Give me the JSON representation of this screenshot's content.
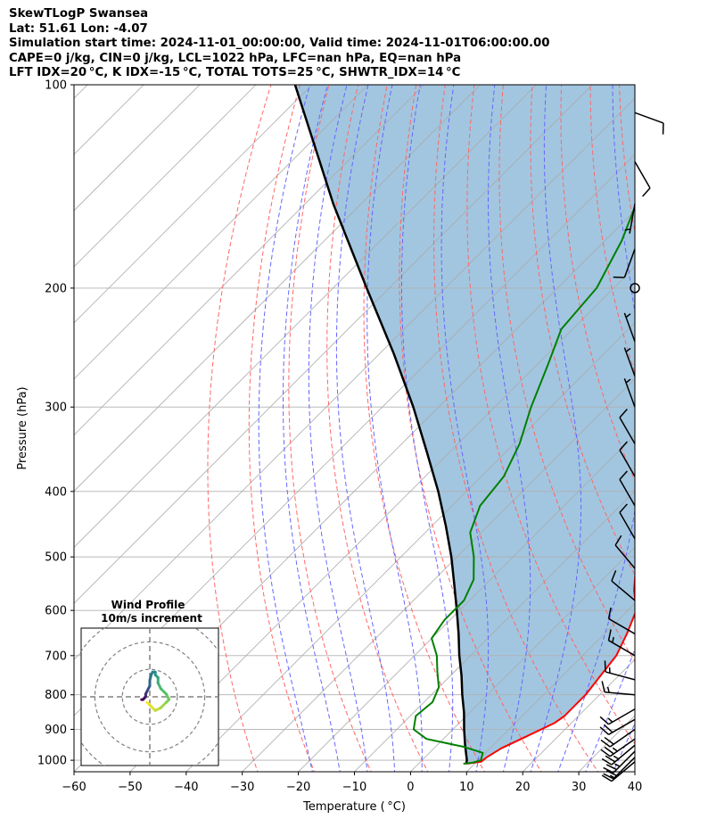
{
  "header": {
    "line1": "SkewTLogP Swansea",
    "line2": "Lat: 51.61   Lon: -4.07",
    "line3": "Simulation start time: 2024-11-01_00:00:00, Valid time: 2024-11-01T06:00:00.00",
    "line4": "CAPE=0 j/kg, CIN=0 j/kg, LCL=1022 hPa, LFC=nan hPa, EQ=nan hPa",
    "line5": "LFT IDX=20 °C, K IDX=-15 °C, TOTAL TOTS=25 °C, SHWTR_IDX=14 °C"
  },
  "chart_data": {
    "type": "line",
    "title": "SkewTLogP Swansea",
    "xlabel": "Temperature ( °C)",
    "ylabel": "Pressure (hPa)",
    "xlim": [
      -60,
      40
    ],
    "ylim": [
      1040,
      100
    ],
    "y_scale": "log",
    "skew": "45 degree skewed isotherms",
    "grid": true,
    "x_ticks": [
      -60,
      -50,
      -40,
      -30,
      -20,
      -10,
      0,
      10,
      20,
      30,
      40
    ],
    "y_ticks": [
      100,
      200,
      300,
      400,
      500,
      600,
      700,
      800,
      900,
      1000
    ],
    "colors": {
      "temperature": "#ff0000",
      "dewpoint": "#008000",
      "parcel": "#000000",
      "shading": "#a2c6e0",
      "dry_adiabats": "#ff6666",
      "moist_adiabats": "#6666ff",
      "isotherms": "#aaaaaa",
      "grid": "#b0b0b0"
    },
    "series": [
      {
        "key": "temperature",
        "points": [
          [
            1012,
            8.5
          ],
          [
            1005,
            10.8
          ],
          [
            990,
            11
          ],
          [
            960,
            12
          ],
          [
            920,
            14.5
          ],
          [
            880,
            17
          ],
          [
            860,
            17.5
          ],
          [
            800,
            17.5
          ],
          [
            700,
            16
          ],
          [
            650,
            14
          ],
          [
            600,
            11.5
          ],
          [
            560,
            7.5
          ],
          [
            510,
            3
          ],
          [
            470,
            -0.5
          ],
          [
            440,
            -3.5
          ],
          [
            400,
            -8
          ],
          [
            350,
            -13.5
          ],
          [
            300,
            -19
          ],
          [
            250,
            -25.5
          ],
          [
            215,
            -31
          ],
          [
            195,
            -35
          ],
          [
            170,
            -38
          ],
          [
            150,
            -41
          ],
          [
            130,
            -46
          ],
          [
            115,
            -49
          ],
          [
            100,
            -54
          ]
        ]
      },
      {
        "key": "dewpoint",
        "points": [
          [
            1012,
            8
          ],
          [
            1008,
            9.5
          ],
          [
            1000,
            10.5
          ],
          [
            975,
            9.5
          ],
          [
            955,
            5
          ],
          [
            930,
            -3
          ],
          [
            900,
            -7
          ],
          [
            860,
            -9
          ],
          [
            820,
            -8.5
          ],
          [
            780,
            -10
          ],
          [
            740,
            -13
          ],
          [
            700,
            -16
          ],
          [
            660,
            -20
          ],
          [
            620,
            -21
          ],
          [
            580,
            -21
          ],
          [
            540,
            -23
          ],
          [
            500,
            -27
          ],
          [
            460,
            -32
          ],
          [
            420,
            -35
          ],
          [
            380,
            -36
          ],
          [
            340,
            -39
          ],
          [
            300,
            -43.5
          ],
          [
            260,
            -48
          ],
          [
            230,
            -52
          ],
          [
            200,
            -53
          ],
          [
            170,
            -57
          ],
          [
            150,
            -61
          ],
          [
            130,
            -63
          ],
          [
            115,
            -63
          ],
          [
            100,
            -65
          ]
        ]
      },
      {
        "key": "parcel",
        "points": [
          [
            1012,
            8.5
          ],
          [
            1000,
            8
          ],
          [
            950,
            5
          ],
          [
            900,
            2
          ],
          [
            850,
            -1
          ],
          [
            800,
            -4.5
          ],
          [
            750,
            -8
          ],
          [
            700,
            -12
          ],
          [
            650,
            -16
          ],
          [
            600,
            -20.5
          ],
          [
            550,
            -25.5
          ],
          [
            500,
            -31
          ],
          [
            450,
            -37.5
          ],
          [
            400,
            -45
          ],
          [
            350,
            -54
          ],
          [
            300,
            -64.5
          ],
          [
            250,
            -77.5
          ],
          [
            200,
            -94
          ],
          [
            150,
            -115
          ],
          [
            100,
            -143
          ]
        ]
      }
    ],
    "wind_barbs": [
      {
        "p": 1005,
        "speed_kt": 15,
        "dir_deg": 230
      },
      {
        "p": 990,
        "speed_kt": 20,
        "dir_deg": 225
      },
      {
        "p": 970,
        "speed_kt": 25,
        "dir_deg": 225
      },
      {
        "p": 950,
        "speed_kt": 25,
        "dir_deg": 230
      },
      {
        "p": 930,
        "speed_kt": 25,
        "dir_deg": 235
      },
      {
        "p": 900,
        "speed_kt": 20,
        "dir_deg": 235
      },
      {
        "p": 870,
        "speed_kt": 20,
        "dir_deg": 240
      },
      {
        "p": 840,
        "speed_kt": 15,
        "dir_deg": 240
      },
      {
        "p": 800,
        "speed_kt": 15,
        "dir_deg": 275
      },
      {
        "p": 760,
        "speed_kt": 15,
        "dir_deg": 285
      },
      {
        "p": 700,
        "speed_kt": 15,
        "dir_deg": 300
      },
      {
        "p": 650,
        "speed_kt": 10,
        "dir_deg": 300
      },
      {
        "p": 580,
        "speed_kt": 10,
        "dir_deg": 310
      },
      {
        "p": 520,
        "speed_kt": 10,
        "dir_deg": 320
      },
      {
        "p": 470,
        "speed_kt": 10,
        "dir_deg": 330
      },
      {
        "p": 420,
        "speed_kt": 10,
        "dir_deg": 330
      },
      {
        "p": 380,
        "speed_kt": 10,
        "dir_deg": 330
      },
      {
        "p": 340,
        "speed_kt": 10,
        "dir_deg": 330
      },
      {
        "p": 300,
        "speed_kt": 5,
        "dir_deg": 340
      },
      {
        "p": 270,
        "speed_kt": 5,
        "dir_deg": 340
      },
      {
        "p": 240,
        "speed_kt": 5,
        "dir_deg": 340
      },
      {
        "p": 200,
        "speed_kt": 0,
        "dir_deg": 0
      },
      {
        "p": 175,
        "speed_kt": 10,
        "dir_deg": 200
      },
      {
        "p": 150,
        "speed_kt": 5,
        "dir_deg": 190
      },
      {
        "p": 130,
        "speed_kt": 10,
        "dir_deg": 150
      },
      {
        "p": 110,
        "speed_kt": 10,
        "dir_deg": 110
      }
    ],
    "hodograph": {
      "title": "Wind Profile",
      "subtitle": "10m/s increment",
      "rings_ms": [
        10,
        20,
        30
      ],
      "range_ms": 25,
      "points_uv": [
        [
          -1,
          -2
        ],
        [
          0,
          -3
        ],
        [
          2,
          -5
        ],
        [
          4,
          -4
        ],
        [
          6,
          -2
        ],
        [
          7,
          -1
        ],
        [
          6,
          1
        ],
        [
          4,
          3
        ],
        [
          3,
          5
        ],
        [
          3,
          7
        ],
        [
          2,
          8
        ],
        [
          2,
          9
        ],
        [
          1,
          9
        ],
        [
          0.5,
          8
        ],
        [
          0,
          6
        ],
        [
          0,
          4
        ],
        [
          -0.5,
          3
        ],
        [
          -1,
          2
        ],
        [
          -1.5,
          1
        ],
        [
          -1.5,
          0
        ],
        [
          -2,
          -0.5
        ],
        [
          -2.5,
          -1
        ],
        [
          -3,
          -1
        ]
      ]
    }
  }
}
